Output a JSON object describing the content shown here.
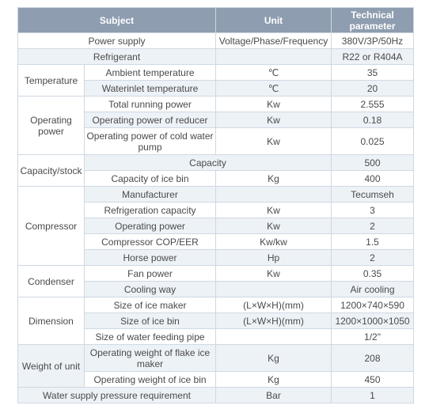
{
  "headers": {
    "subject": "Subject",
    "unit": "Unit",
    "param": "Technical parameter"
  },
  "rows": {
    "power_supply": {
      "label": "Power supply",
      "unit": "Voltage/Phase/Frequency",
      "value": "380V/3P/50Hz"
    },
    "refrigerant": {
      "label": "Refrigerant",
      "unit": "",
      "value": "R22 or R404A"
    },
    "temperature": {
      "category": "Temperature",
      "ambient": {
        "label": "Ambient temperature",
        "unit": "℃",
        "value": "35"
      },
      "waterinlet": {
        "label": "Waterinlet temperature",
        "unit": "℃",
        "value": "20"
      }
    },
    "operating_power": {
      "category": "Operating power",
      "total": {
        "label": "Total running power",
        "unit": "Kw",
        "value": "2.555"
      },
      "reducer": {
        "label": "Operating power of reducer",
        "unit": "Kw",
        "value": "0.18"
      },
      "pump": {
        "label": "Operating power of cold water pump",
        "unit": "Kw",
        "value": "0.025"
      }
    },
    "capacity": {
      "category": "Capacity/stock",
      "capacity": {
        "label": "Capacity",
        "value": "500"
      },
      "ice_bin": {
        "label": "Capacity of ice bin",
        "unit": "Kg",
        "value": "400"
      }
    },
    "compressor": {
      "category": "Compressor",
      "manufacturer": {
        "label": "Manufacturer",
        "unit": "",
        "value": "Tecumseh"
      },
      "refrig_capacity": {
        "label": "Refrigeration capacity",
        "unit": "Kw",
        "value": "3"
      },
      "op_power": {
        "label": "Operating power",
        "unit": "Kw",
        "value": "2"
      },
      "cop": {
        "label": "Compressor COP/EER",
        "unit": "Kw/kw",
        "value": "1.5"
      },
      "hp": {
        "label": "Horse power",
        "unit": "Hp",
        "value": "2"
      }
    },
    "condenser": {
      "category": "Condenser",
      "fan": {
        "label": "Fan power",
        "unit": "Kw",
        "value": "0.35"
      },
      "cooling": {
        "label": "Cooling way",
        "unit": "",
        "value": "Air cooling"
      }
    },
    "dimension": {
      "category": "Dimension",
      "maker": {
        "label": "Size of ice maker",
        "unit": "(L×W×H)(mm)",
        "value": "1200×740×590"
      },
      "bin": {
        "label": "Size of ice bin",
        "unit": "(L×W×H)(mm)",
        "value": "1200×1000×1050"
      },
      "pipe": {
        "label": "Size of water feeding pipe",
        "unit": "",
        "value": "1/2\""
      }
    },
    "weight": {
      "category": "Weight of unit",
      "flake": {
        "label": "Operating weight of flake ice maker",
        "unit": "Kg",
        "value": "208"
      },
      "bin": {
        "label": "Operating weight of ice bin",
        "unit": "Kg",
        "value": "450"
      }
    },
    "water_pressure": {
      "label": "Water supply pressure requirement",
      "unit": "Bar",
      "value": "1"
    }
  }
}
